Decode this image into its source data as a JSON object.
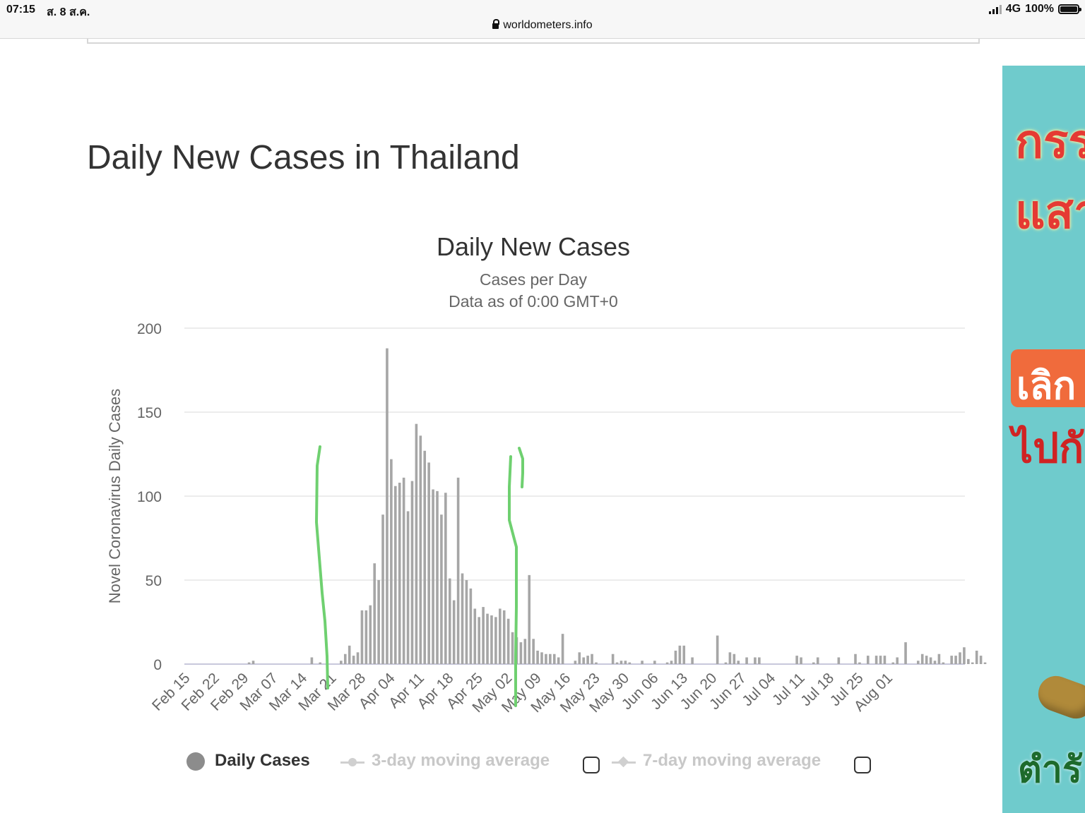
{
  "status_bar": {
    "time": "07:15",
    "date": "ส. 8 ส.ค.",
    "network": "4G",
    "battery": "100%"
  },
  "browser": {
    "url": "worldometers.info"
  },
  "page": {
    "title": "Daily New Cases in Thailand"
  },
  "ad": {
    "line1": "กรร",
    "line2": "แสา",
    "line3": "เลิก",
    "line4": "ไปกั",
    "line5": "ตำรั"
  },
  "legend": {
    "daily_cases": "Daily Cases",
    "avg3": "3-day moving average",
    "avg7": "7-day moving average"
  },
  "chart_data": {
    "type": "bar",
    "title": "Daily New Cases",
    "subtitle_1": "Cases per Day",
    "subtitle_2": "Data as of 0:00 GMT+0",
    "xlabel": "",
    "ylabel": "Novel Coronavirus Daily Cases",
    "ylim": [
      0,
      200
    ],
    "yticks": [
      0,
      50,
      100,
      150,
      200
    ],
    "grid": true,
    "legend_position": "bottom",
    "bar_color": "#a6a6a6",
    "annotation_color": "#6fd070",
    "tick_labels": [
      "Feb 15",
      "Feb 22",
      "Feb 29",
      "Mar 07",
      "Mar 14",
      "Mar 21",
      "Mar 28",
      "Apr 04",
      "Apr 11",
      "Apr 18",
      "Apr 25",
      "May 02",
      "May 09",
      "May 16",
      "May 23",
      "May 30",
      "Jun 06",
      "Jun 13",
      "Jun 20",
      "Jun 27",
      "Jul 04",
      "Jul 11",
      "Jul 18",
      "Jul 25",
      "Aug 01"
    ],
    "x_start": "Feb 15",
    "values": [
      0,
      0,
      0,
      0,
      0,
      0,
      0,
      0,
      0,
      0,
      0,
      0,
      0,
      0,
      0,
      1,
      2,
      0,
      0,
      0,
      0,
      0,
      0,
      0,
      0,
      0,
      0,
      0,
      0,
      0,
      4,
      0,
      1,
      0,
      0,
      0,
      0,
      2,
      6,
      11,
      5,
      7,
      32,
      32,
      35,
      60,
      50,
      89,
      188,
      122,
      106,
      108,
      111,
      91,
      109,
      143,
      136,
      127,
      120,
      104,
      103,
      89,
      102,
      51,
      38,
      111,
      54,
      50,
      45,
      33,
      28,
      34,
      30,
      29,
      28,
      33,
      32,
      27,
      19,
      16,
      13,
      15,
      53,
      15,
      8,
      7,
      6,
      6,
      6,
      4,
      18,
      0,
      0,
      2,
      7,
      4,
      5,
      6,
      1,
      0,
      0,
      0,
      6,
      1,
      2,
      2,
      1,
      0,
      0,
      2,
      0,
      0,
      2,
      0,
      0,
      1,
      2,
      8,
      11,
      11,
      0,
      4,
      0,
      0,
      0,
      0,
      0,
      17,
      0,
      1,
      7,
      6,
      2,
      0,
      4,
      0,
      4,
      4,
      0,
      0,
      0,
      0,
      0,
      0,
      0,
      0,
      5,
      4,
      0,
      0,
      1,
      4,
      0,
      0,
      0,
      0,
      4,
      0,
      0,
      0,
      6,
      1,
      0,
      5,
      0,
      5,
      5,
      5,
      0,
      1,
      4,
      0,
      13,
      0,
      0,
      2,
      6,
      5,
      4,
      2,
      6,
      1,
      0,
      5,
      5,
      7,
      10,
      3,
      1,
      8,
      5,
      1,
      0,
      5,
      5,
      2,
      3,
      1,
      0,
      0,
      7,
      1
    ]
  }
}
